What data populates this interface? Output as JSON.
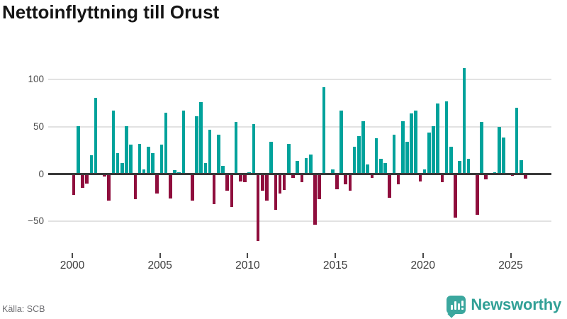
{
  "title": "Nettoinflyttning till Orust",
  "footer": {
    "source": "Källa: SCB",
    "brand": "Newsworthy"
  },
  "colors": {
    "positive": "#00a29b",
    "negative": "#8f0e3d",
    "axis": "#3a3a3a",
    "grid": "#e2e2e2",
    "tick_text": "#3d3d3d",
    "title_text": "#161616",
    "brand_teal": "#31a096"
  },
  "chart_data": {
    "type": "bar",
    "title": "Nettoinflyttning till Orust",
    "frequency": "quarterly",
    "x_start": "2000 Q1",
    "x_end": "2025 Q4",
    "xlabel": "",
    "ylabel": "",
    "ylim": [
      -75,
      115
    ],
    "grid": "horizontal",
    "y_ticks": [
      {
        "value": 100,
        "label": "100"
      },
      {
        "value": 50,
        "label": "50"
      },
      {
        "value": 0,
        "label": "0"
      },
      {
        "value": -50,
        "label": "−50"
      }
    ],
    "x_ticks": [
      {
        "year": 2000,
        "label": "2000"
      },
      {
        "year": 2005,
        "label": "2005"
      },
      {
        "year": 2010,
        "label": "2010"
      },
      {
        "year": 2015,
        "label": "2015"
      },
      {
        "year": 2020,
        "label": "2020"
      },
      {
        "year": 2025,
        "label": "2025"
      }
    ],
    "positive_color": "#00a29b",
    "negative_color": "#8f0e3d",
    "values": [
      -22,
      51,
      -15,
      -10,
      20,
      81,
      0,
      -3,
      -28,
      67,
      22,
      12,
      51,
      31,
      -27,
      32,
      5,
      29,
      22,
      -21,
      31,
      65,
      -26,
      4,
      2,
      67,
      0,
      -28,
      61,
      76,
      12,
      47,
      -32,
      42,
      9,
      -18,
      -35,
      55,
      -8,
      -9,
      2,
      53,
      -71,
      -18,
      -28,
      34,
      -38,
      -21,
      -17,
      32,
      -4,
      14,
      -9,
      17,
      21,
      -54,
      -27,
      92,
      0,
      5,
      -16,
      67,
      -11,
      -18,
      29,
      40,
      56,
      10,
      -4,
      38,
      16,
      12,
      -25,
      42,
      -11,
      56,
      34,
      64,
      67,
      -8,
      5,
      44,
      51,
      75,
      -9,
      77,
      29,
      -46,
      14,
      112,
      16,
      0,
      -43,
      55,
      -6,
      0,
      2,
      50,
      39,
      0,
      -2,
      70,
      15,
      -5
    ],
    "source": "Källa: SCB"
  }
}
